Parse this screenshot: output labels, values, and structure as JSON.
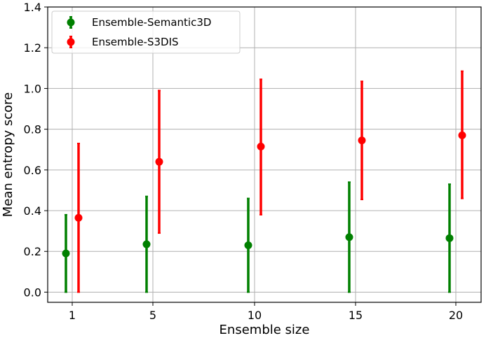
{
  "chart_data": {
    "type": "scatter",
    "xlabel": "Ensemble size",
    "ylabel": "Mean entropy score",
    "x_tick_labels": [
      "1",
      "5",
      "10",
      "15",
      "20"
    ],
    "y_tick_labels": [
      "0.0",
      "0.2",
      "0.4",
      "0.6",
      "0.8",
      "1.0",
      "1.2",
      "1.4"
    ],
    "ylim": [
      -0.05,
      1.4
    ],
    "grid": true,
    "legend_position": "top-left",
    "series": [
      {
        "name": "Ensemble-Semantic3D",
        "color": "#008000",
        "points": [
          {
            "x": 1,
            "y": 0.19,
            "err_low": 0.0,
            "err_high": 0.38
          },
          {
            "x": 5,
            "y": 0.235,
            "err_low": 0.0,
            "err_high": 0.47
          },
          {
            "x": 10,
            "y": 0.23,
            "err_low": 0.0,
            "err_high": 0.46
          },
          {
            "x": 15,
            "y": 0.27,
            "err_low": 0.0,
            "err_high": 0.54
          },
          {
            "x": 20,
            "y": 0.265,
            "err_low": 0.0,
            "err_high": 0.53
          }
        ]
      },
      {
        "name": "Ensemble-S3DIS",
        "color": "#ff0000",
        "points": [
          {
            "x": 1,
            "y": 0.365,
            "err_low": 0.0,
            "err_high": 0.73
          },
          {
            "x": 5,
            "y": 0.64,
            "err_low": 0.29,
            "err_high": 0.99
          },
          {
            "x": 10,
            "y": 0.715,
            "err_low": 0.38,
            "err_high": 1.045
          },
          {
            "x": 15,
            "y": 0.745,
            "err_low": 0.455,
            "err_high": 1.035
          },
          {
            "x": 20,
            "y": 0.77,
            "err_low": 0.46,
            "err_high": 1.085
          }
        ]
      }
    ]
  }
}
